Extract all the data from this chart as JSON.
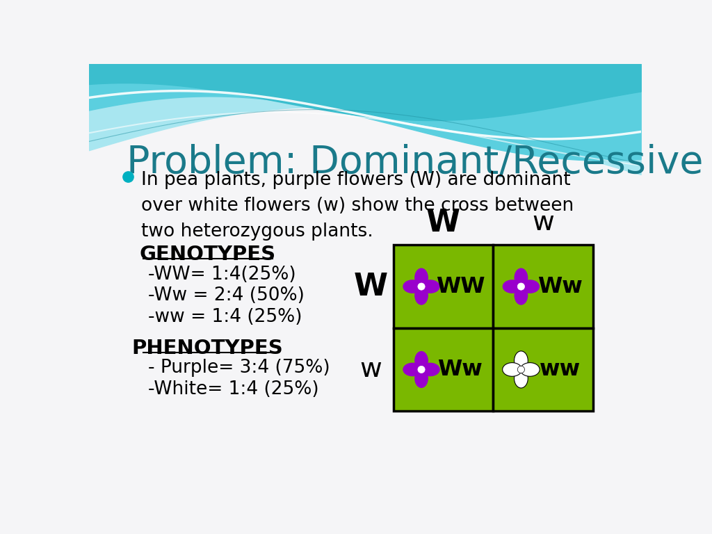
{
  "title": "Problem: Dominant/Recessive",
  "title_color": "#1a7a8a",
  "bullet_text": "In pea plants, purple flowers (W) are dominant\nover white flowers (w) show the cross between\ntwo heterozygous plants.",
  "bullet_color": "#00b0c0",
  "body_text_color": "#000000",
  "bg_color": "#f5f5f7",
  "genotypes_label": "GENOTYPES",
  "genotype_lines": [
    "-WW= 1:4(25%)",
    "-Ww = 2:4 (50%)",
    "-ww = 1:4 (25%)"
  ],
  "phenotypes_label": "PHENOTYPES",
  "phenotype_lines": [
    "- Purple= 3:4 (75%)",
    "-White= 1:4 (25%)"
  ],
  "punnett_col_labels": [
    "W",
    "w"
  ],
  "punnett_row_labels": [
    "W",
    "w"
  ],
  "punnett_cells": [
    [
      "WW",
      "Ww"
    ],
    [
      "Ww",
      "ww"
    ]
  ],
  "grid_bg": "#7ab800",
  "flower_purple": "#9900cc",
  "flower_white": "#ffffff"
}
